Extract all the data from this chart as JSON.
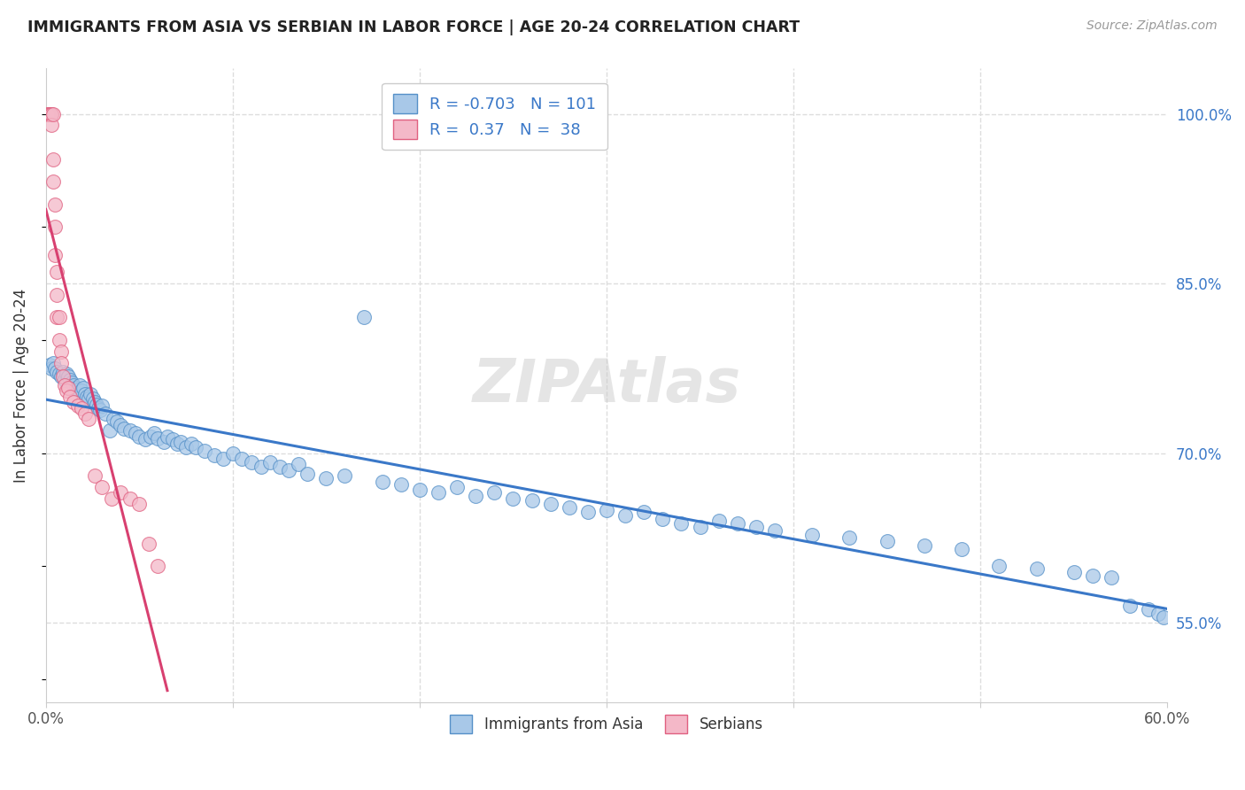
{
  "title": "IMMIGRANTS FROM ASIA VS SERBIAN IN LABOR FORCE | AGE 20-24 CORRELATION CHART",
  "source": "Source: ZipAtlas.com",
  "ylabel": "In Labor Force | Age 20-24",
  "xlim": [
    0.0,
    0.6
  ],
  "ylim": [
    0.48,
    1.04
  ],
  "xticks": [
    0.0,
    0.1,
    0.2,
    0.3,
    0.4,
    0.5,
    0.6
  ],
  "xticklabels": [
    "0.0%",
    "",
    "",
    "",
    "",
    "",
    "60.0%"
  ],
  "yticks_right": [
    0.55,
    0.7,
    0.85,
    1.0
  ],
  "ytick_right_labels": [
    "55.0%",
    "70.0%",
    "85.0%",
    "100.0%"
  ],
  "blue_R": -0.703,
  "blue_N": 101,
  "pink_R": 0.37,
  "pink_N": 38,
  "blue_color": "#a8c8e8",
  "pink_color": "#f4b8c8",
  "blue_edge_color": "#5590c8",
  "pink_edge_color": "#e06080",
  "blue_line_color": "#3a78c8",
  "pink_line_color": "#d84070",
  "legend_blue_label": "Immigrants from Asia",
  "legend_pink_label": "Serbians",
  "blue_scatter_x": [
    0.002,
    0.003,
    0.004,
    0.005,
    0.006,
    0.007,
    0.008,
    0.009,
    0.01,
    0.011,
    0.012,
    0.013,
    0.014,
    0.015,
    0.016,
    0.017,
    0.018,
    0.019,
    0.02,
    0.021,
    0.022,
    0.023,
    0.024,
    0.025,
    0.026,
    0.027,
    0.028,
    0.029,
    0.03,
    0.032,
    0.034,
    0.036,
    0.038,
    0.04,
    0.042,
    0.045,
    0.048,
    0.05,
    0.053,
    0.056,
    0.058,
    0.06,
    0.063,
    0.065,
    0.068,
    0.07,
    0.072,
    0.075,
    0.078,
    0.08,
    0.085,
    0.09,
    0.095,
    0.1,
    0.105,
    0.11,
    0.115,
    0.12,
    0.125,
    0.13,
    0.135,
    0.14,
    0.15,
    0.16,
    0.17,
    0.18,
    0.19,
    0.2,
    0.21,
    0.22,
    0.23,
    0.24,
    0.25,
    0.26,
    0.27,
    0.28,
    0.29,
    0.3,
    0.31,
    0.32,
    0.33,
    0.34,
    0.35,
    0.36,
    0.37,
    0.38,
    0.39,
    0.41,
    0.43,
    0.45,
    0.47,
    0.49,
    0.51,
    0.53,
    0.55,
    0.56,
    0.57,
    0.58,
    0.59,
    0.595,
    0.598
  ],
  "blue_scatter_y": [
    0.778,
    0.775,
    0.78,
    0.775,
    0.772,
    0.77,
    0.768,
    0.772,
    0.765,
    0.77,
    0.768,
    0.765,
    0.762,
    0.76,
    0.758,
    0.756,
    0.76,
    0.755,
    0.758,
    0.752,
    0.75,
    0.748,
    0.752,
    0.748,
    0.745,
    0.743,
    0.74,
    0.738,
    0.742,
    0.735,
    0.72,
    0.73,
    0.728,
    0.725,
    0.722,
    0.72,
    0.718,
    0.715,
    0.712,
    0.715,
    0.718,
    0.713,
    0.71,
    0.715,
    0.712,
    0.708,
    0.71,
    0.705,
    0.708,
    0.705,
    0.702,
    0.698,
    0.695,
    0.7,
    0.695,
    0.692,
    0.688,
    0.692,
    0.688,
    0.685,
    0.69,
    0.682,
    0.678,
    0.68,
    0.82,
    0.675,
    0.672,
    0.668,
    0.665,
    0.67,
    0.662,
    0.665,
    0.66,
    0.658,
    0.655,
    0.652,
    0.648,
    0.65,
    0.645,
    0.648,
    0.642,
    0.638,
    0.635,
    0.64,
    0.638,
    0.635,
    0.632,
    0.628,
    0.625,
    0.622,
    0.618,
    0.615,
    0.6,
    0.598,
    0.595,
    0.592,
    0.59,
    0.565,
    0.562,
    0.558,
    0.555
  ],
  "pink_scatter_x": [
    0.001,
    0.001,
    0.002,
    0.002,
    0.003,
    0.003,
    0.003,
    0.004,
    0.004,
    0.004,
    0.005,
    0.005,
    0.005,
    0.006,
    0.006,
    0.006,
    0.007,
    0.007,
    0.008,
    0.008,
    0.009,
    0.01,
    0.011,
    0.012,
    0.013,
    0.015,
    0.017,
    0.019,
    0.021,
    0.023,
    0.026,
    0.03,
    0.035,
    0.04,
    0.045,
    0.05,
    0.055,
    0.06
  ],
  "pink_scatter_y": [
    1.0,
    1.0,
    1.0,
    1.0,
    1.0,
    1.0,
    0.99,
    1.0,
    0.96,
    0.94,
    0.92,
    0.9,
    0.875,
    0.86,
    0.84,
    0.82,
    0.8,
    0.82,
    0.79,
    0.78,
    0.768,
    0.76,
    0.755,
    0.758,
    0.75,
    0.745,
    0.742,
    0.74,
    0.735,
    0.73,
    0.68,
    0.67,
    0.66,
    0.665,
    0.66,
    0.655,
    0.62,
    0.6
  ],
  "background_color": "#ffffff",
  "grid_color": "#dddddd"
}
